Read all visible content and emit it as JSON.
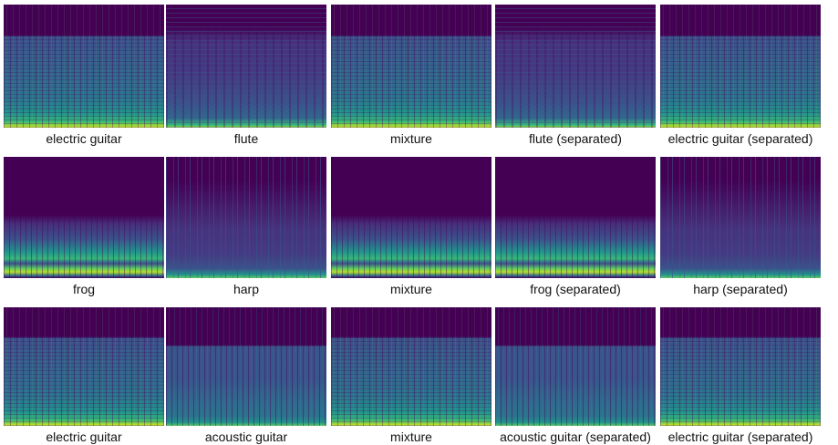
{
  "rows": [
    {
      "panels": [
        {
          "label": "electric guitar"
        },
        {
          "label": "flute"
        },
        {
          "label": "mixture"
        },
        {
          "label": "flute (separated)"
        },
        {
          "label": "electric guitar (separated)"
        }
      ]
    },
    {
      "panels": [
        {
          "label": "frog"
        },
        {
          "label": "harp"
        },
        {
          "label": "mixture"
        },
        {
          "label": "frog (separated)"
        },
        {
          "label": "harp (separated)"
        }
      ]
    },
    {
      "panels": [
        {
          "label": "electric guitar"
        },
        {
          "label": "acoustic guitar"
        },
        {
          "label": "mixture"
        },
        {
          "label": "acoustic guitar (separated)"
        },
        {
          "label": "electric guitar (separated)"
        }
      ]
    }
  ]
}
